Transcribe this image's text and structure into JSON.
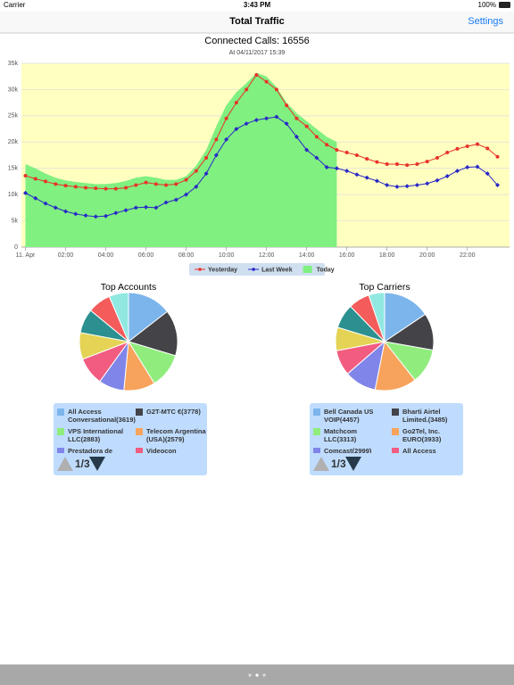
{
  "status_bar": {
    "carrier": "Carrier",
    "time": "3:43 PM",
    "battery": "100%"
  },
  "nav": {
    "title": "Total Traffic",
    "settings": "Settings"
  },
  "chart_data": [
    {
      "type": "line",
      "title": "Connected Calls: 16556",
      "subtitle": "At 04/11/2017 15:39",
      "x": [
        0,
        0.5,
        1,
        1.5,
        2,
        2.5,
        3,
        3.5,
        4,
        4.5,
        5,
        5.5,
        6,
        6.5,
        7,
        7.5,
        8,
        8.5,
        9,
        9.5,
        10,
        10.5,
        11,
        11.5,
        12,
        12.5,
        13,
        13.5,
        14,
        14.5,
        15,
        15.5,
        16,
        16.5,
        17,
        17.5,
        18,
        18.5,
        19,
        19.5,
        20,
        20.5,
        21,
        21.5,
        22,
        22.5,
        23,
        23.5
      ],
      "xlim": [
        -0.2,
        24.1
      ],
      "xticks": [
        {
          "value": 0,
          "label": "11. Apr"
        },
        {
          "value": 2,
          "label": "02:00"
        },
        {
          "value": 4,
          "label": "04:00"
        },
        {
          "value": 6,
          "label": "06:00"
        },
        {
          "value": 8,
          "label": "08:00"
        },
        {
          "value": 10,
          "label": "10:00"
        },
        {
          "value": 12,
          "label": "12:00"
        },
        {
          "value": 14,
          "label": "14:00"
        },
        {
          "value": 16,
          "label": "16:00"
        },
        {
          "value": 18,
          "label": "18:00"
        },
        {
          "value": 20,
          "label": "20:00"
        },
        {
          "value": 22,
          "label": "22:00"
        }
      ],
      "ylim": [
        0,
        35000
      ],
      "yticks": [
        0,
        {
          "value": 5000,
          "label": "5k"
        },
        {
          "value": 10000,
          "label": "10k"
        },
        {
          "value": 15000,
          "label": "15k"
        },
        {
          "value": 20000,
          "label": "20k"
        },
        {
          "value": 25000,
          "label": "25k"
        },
        {
          "value": 30000,
          "label": "30k"
        },
        {
          "value": 35000,
          "label": "35k"
        }
      ],
      "grid": true,
      "legend": "bottom",
      "background": "#ffffc0",
      "series": [
        {
          "name": "Today",
          "color": "#80f080",
          "fill": true,
          "values": [
            15800,
            15000,
            14000,
            13200,
            12700,
            12400,
            12200,
            12000,
            12000,
            12200,
            12600,
            13200,
            13500,
            13200,
            12800,
            12800,
            13500,
            15500,
            18500,
            23000,
            27000,
            29500,
            31200,
            33200,
            32500,
            30500,
            27500,
            25500,
            24000,
            22500,
            21000,
            20000,
            null,
            null,
            null,
            null,
            null,
            null,
            null,
            null,
            null,
            null,
            null,
            null,
            null,
            null,
            null,
            null
          ]
        },
        {
          "name": "Yesterday",
          "color": "#e8332a",
          "marker": "circle",
          "values": [
            13600,
            13000,
            12500,
            12000,
            11700,
            11500,
            11300,
            11200,
            11100,
            11100,
            11300,
            11800,
            12300,
            12000,
            11800,
            12000,
            12800,
            14500,
            17000,
            20500,
            24500,
            27500,
            30000,
            32800,
            31500,
            30000,
            27000,
            24500,
            23000,
            21000,
            19500,
            18500,
            18000,
            17500,
            16800,
            16200,
            15800,
            15800,
            15600,
            15800,
            16300,
            17000,
            18000,
            18700,
            19200,
            19600,
            18800,
            17200
          ]
        },
        {
          "name": "Last Week",
          "color": "#2828c8",
          "marker": "diamond",
          "values": [
            10300,
            9300,
            8300,
            7500,
            6800,
            6300,
            6000,
            5800,
            5900,
            6500,
            7000,
            7500,
            7600,
            7500,
            8500,
            9000,
            10000,
            11500,
            14000,
            17500,
            20500,
            22500,
            23500,
            24200,
            24500,
            24800,
            23500,
            21000,
            18500,
            17000,
            15200,
            15000,
            14500,
            13800,
            13200,
            12600,
            11800,
            11500,
            11600,
            11800,
            12100,
            12700,
            13500,
            14500,
            15200,
            15300,
            14000,
            11800
          ]
        }
      ]
    },
    {
      "type": "pie",
      "title": "Top Accounts",
      "page_label": "1/3",
      "colors": [
        "#7cb5ec",
        "#434348",
        "#90ed7d",
        "#f7a35c",
        "#8085e9",
        "#f15c80",
        "#e4d354",
        "#2b908f",
        "#f45b5b",
        "#91e8e1"
      ],
      "categories": [
        "All Access Conversational(3619)",
        "G2T-MTC €(3778)",
        "VPS International LLC(2883)",
        "Telecom Argentina (USA)(2579)",
        "Prestadora de",
        "Videocon",
        null,
        null,
        null,
        null
      ],
      "values": [
        3619,
        3778,
        2883,
        2579,
        2100,
        2300,
        2200,
        2000,
        1900,
        1600
      ]
    },
    {
      "type": "pie",
      "title": "Top Carriers",
      "page_label": "1/3",
      "colors": [
        "#7cb5ec",
        "#434348",
        "#90ed7d",
        "#f7a35c",
        "#8085e9",
        "#f15c80",
        "#e4d354",
        "#2b908f",
        "#f45b5b",
        "#91e8e1"
      ],
      "categories": [
        "Bell Canada US VOIP(4457)",
        "Bharti Airtel Limited.(3485)",
        "Matchcom LLC(3313)",
        "Go2Tel, Inc. EURO(3933)",
        "Comcast(2999)",
        "All Access",
        null,
        null,
        null,
        null
      ],
      "values": [
        4457,
        3485,
        3313,
        3933,
        2999,
        2400,
        2200,
        2300,
        2000,
        1500
      ]
    }
  ]
}
